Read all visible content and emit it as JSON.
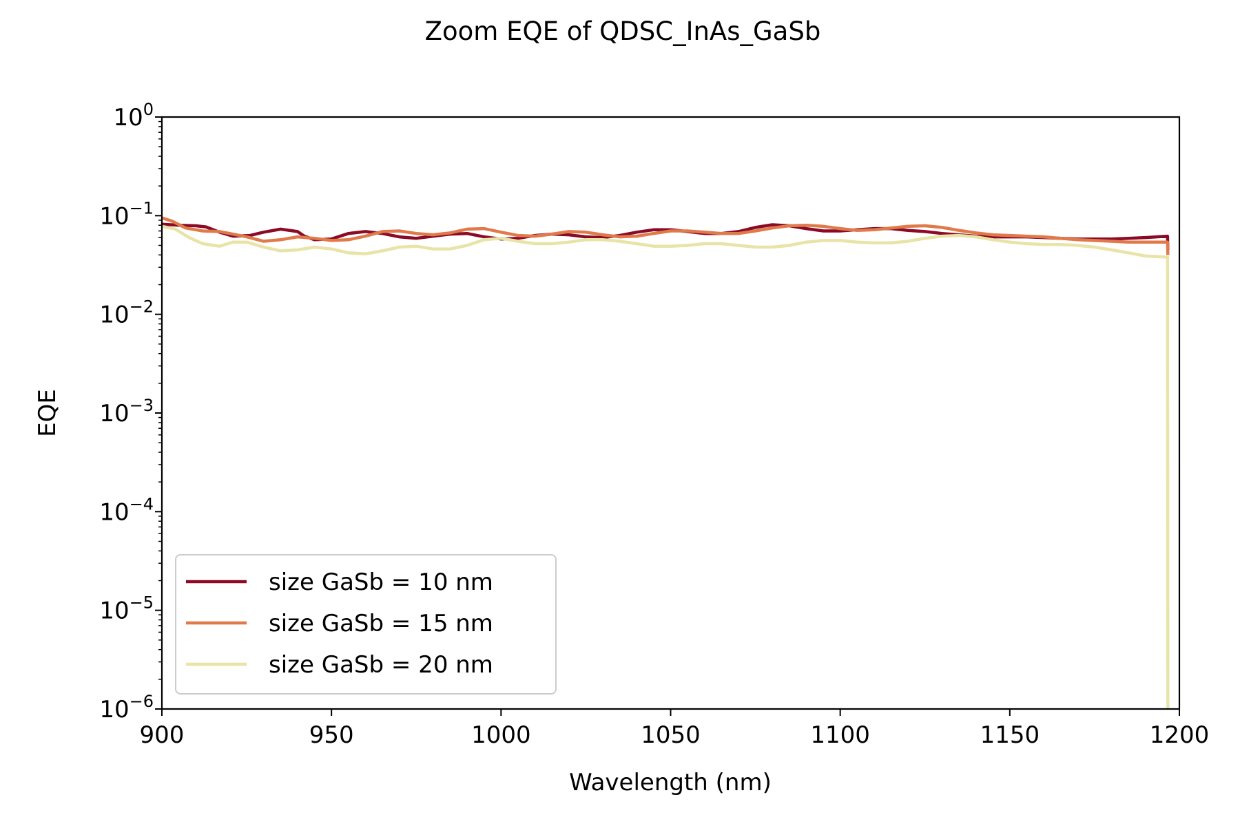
{
  "chart_data": {
    "type": "line",
    "title": "Zoom EQE of QDSC_InAs_GaSb",
    "xlabel": "Wavelength (nm)",
    "ylabel": "EQE",
    "xlim": [
      900,
      1200
    ],
    "ylim": [
      1e-06,
      1
    ],
    "yscale": "log",
    "grid": false,
    "legend_position": "lower-left",
    "xticks": [
      {
        "value": 900,
        "label": "900"
      },
      {
        "value": 950,
        "label": "950"
      },
      {
        "value": 1000,
        "label": "1000"
      },
      {
        "value": 1050,
        "label": "1050"
      },
      {
        "value": 1100,
        "label": "1100"
      },
      {
        "value": 1150,
        "label": "1150"
      },
      {
        "value": 1200,
        "label": "1200"
      }
    ],
    "yticks": [
      {
        "value": 1,
        "base": "10",
        "exp": "0"
      },
      {
        "value": 0.1,
        "base": "10",
        "exp": "−1"
      },
      {
        "value": 0.01,
        "base": "10",
        "exp": "−2"
      },
      {
        "value": 0.001,
        "base": "10",
        "exp": "−3"
      },
      {
        "value": 0.0001,
        "base": "10",
        "exp": "−4"
      },
      {
        "value": 1e-05,
        "base": "10",
        "exp": "−5"
      },
      {
        "value": 1e-06,
        "base": "10",
        "exp": "−6"
      }
    ],
    "series": [
      {
        "name": "size GaSb = 10 nm",
        "color": "#8b0a26",
        "points": [
          [
            900,
            0.082
          ],
          [
            905,
            0.08
          ],
          [
            910,
            0.079
          ],
          [
            913,
            0.077
          ],
          [
            917,
            0.068
          ],
          [
            921,
            0.062
          ],
          [
            926,
            0.063
          ],
          [
            930,
            0.068
          ],
          [
            935,
            0.073
          ],
          [
            940,
            0.069
          ],
          [
            942,
            0.062
          ],
          [
            945,
            0.057
          ],
          [
            950,
            0.058
          ],
          [
            955,
            0.066
          ],
          [
            960,
            0.069
          ],
          [
            965,
            0.066
          ],
          [
            970,
            0.061
          ],
          [
            975,
            0.059
          ],
          [
            980,
            0.062
          ],
          [
            985,
            0.065
          ],
          [
            990,
            0.066
          ],
          [
            995,
            0.061
          ],
          [
            1000,
            0.058
          ],
          [
            1005,
            0.059
          ],
          [
            1010,
            0.063
          ],
          [
            1015,
            0.065
          ],
          [
            1020,
            0.064
          ],
          [
            1025,
            0.061
          ],
          [
            1030,
            0.06
          ],
          [
            1035,
            0.063
          ],
          [
            1040,
            0.068
          ],
          [
            1045,
            0.072
          ],
          [
            1050,
            0.072
          ],
          [
            1055,
            0.069
          ],
          [
            1060,
            0.066
          ],
          [
            1065,
            0.066
          ],
          [
            1070,
            0.069
          ],
          [
            1075,
            0.076
          ],
          [
            1080,
            0.081
          ],
          [
            1085,
            0.079
          ],
          [
            1090,
            0.074
          ],
          [
            1095,
            0.07
          ],
          [
            1100,
            0.07
          ],
          [
            1105,
            0.072
          ],
          [
            1110,
            0.074
          ],
          [
            1115,
            0.074
          ],
          [
            1120,
            0.071
          ],
          [
            1125,
            0.069
          ],
          [
            1130,
            0.066
          ],
          [
            1135,
            0.064
          ],
          [
            1140,
            0.062
          ],
          [
            1145,
            0.061
          ],
          [
            1150,
            0.061
          ],
          [
            1155,
            0.061
          ],
          [
            1160,
            0.06
          ],
          [
            1165,
            0.059
          ],
          [
            1170,
            0.058
          ],
          [
            1175,
            0.058
          ],
          [
            1180,
            0.058
          ],
          [
            1185,
            0.059
          ],
          [
            1190,
            0.06
          ],
          [
            1196.5,
            0.062
          ],
          [
            1196.6,
            0.045
          ]
        ]
      },
      {
        "name": "size GaSb = 15 nm",
        "color": "#e07a4a",
        "points": [
          [
            900,
            0.095
          ],
          [
            903,
            0.088
          ],
          [
            907,
            0.075
          ],
          [
            912,
            0.07
          ],
          [
            917,
            0.069
          ],
          [
            920,
            0.066
          ],
          [
            925,
            0.061
          ],
          [
            930,
            0.055
          ],
          [
            935,
            0.057
          ],
          [
            940,
            0.061
          ],
          [
            945,
            0.059
          ],
          [
            950,
            0.056
          ],
          [
            955,
            0.057
          ],
          [
            960,
            0.062
          ],
          [
            965,
            0.069
          ],
          [
            970,
            0.07
          ],
          [
            975,
            0.066
          ],
          [
            980,
            0.064
          ],
          [
            985,
            0.067
          ],
          [
            990,
            0.073
          ],
          [
            995,
            0.074
          ],
          [
            1000,
            0.068
          ],
          [
            1005,
            0.063
          ],
          [
            1010,
            0.062
          ],
          [
            1015,
            0.065
          ],
          [
            1020,
            0.069
          ],
          [
            1025,
            0.068
          ],
          [
            1030,
            0.064
          ],
          [
            1035,
            0.061
          ],
          [
            1040,
            0.062
          ],
          [
            1045,
            0.066
          ],
          [
            1050,
            0.07
          ],
          [
            1055,
            0.07
          ],
          [
            1060,
            0.068
          ],
          [
            1065,
            0.066
          ],
          [
            1070,
            0.066
          ],
          [
            1075,
            0.07
          ],
          [
            1080,
            0.075
          ],
          [
            1085,
            0.079
          ],
          [
            1090,
            0.08
          ],
          [
            1095,
            0.078
          ],
          [
            1100,
            0.074
          ],
          [
            1105,
            0.071
          ],
          [
            1110,
            0.072
          ],
          [
            1115,
            0.075
          ],
          [
            1120,
            0.078
          ],
          [
            1125,
            0.079
          ],
          [
            1130,
            0.076
          ],
          [
            1135,
            0.071
          ],
          [
            1140,
            0.067
          ],
          [
            1145,
            0.064
          ],
          [
            1150,
            0.063
          ],
          [
            1155,
            0.062
          ],
          [
            1160,
            0.061
          ],
          [
            1165,
            0.059
          ],
          [
            1170,
            0.057
          ],
          [
            1175,
            0.056
          ],
          [
            1180,
            0.055
          ],
          [
            1185,
            0.054
          ],
          [
            1190,
            0.054
          ],
          [
            1196.5,
            0.054
          ],
          [
            1196.6,
            0.04
          ]
        ]
      },
      {
        "name": "size GaSb = 20 nm",
        "color": "#e8e4a8",
        "points": [
          [
            900,
            0.078
          ],
          [
            904,
            0.073
          ],
          [
            908,
            0.06
          ],
          [
            912,
            0.052
          ],
          [
            917,
            0.049
          ],
          [
            921,
            0.054
          ],
          [
            925,
            0.054
          ],
          [
            930,
            0.048
          ],
          [
            935,
            0.044
          ],
          [
            940,
            0.045
          ],
          [
            945,
            0.048
          ],
          [
            950,
            0.046
          ],
          [
            955,
            0.042
          ],
          [
            960,
            0.041
          ],
          [
            965,
            0.044
          ],
          [
            970,
            0.048
          ],
          [
            975,
            0.049
          ],
          [
            980,
            0.046
          ],
          [
            985,
            0.046
          ],
          [
            990,
            0.05
          ],
          [
            995,
            0.057
          ],
          [
            1000,
            0.059
          ],
          [
            1005,
            0.055
          ],
          [
            1010,
            0.052
          ],
          [
            1015,
            0.052
          ],
          [
            1020,
            0.054
          ],
          [
            1025,
            0.057
          ],
          [
            1030,
            0.057
          ],
          [
            1035,
            0.055
          ],
          [
            1040,
            0.052
          ],
          [
            1045,
            0.049
          ],
          [
            1050,
            0.049
          ],
          [
            1055,
            0.05
          ],
          [
            1060,
            0.052
          ],
          [
            1065,
            0.052
          ],
          [
            1070,
            0.05
          ],
          [
            1075,
            0.048
          ],
          [
            1080,
            0.048
          ],
          [
            1085,
            0.05
          ],
          [
            1090,
            0.054
          ],
          [
            1095,
            0.056
          ],
          [
            1100,
            0.056
          ],
          [
            1105,
            0.054
          ],
          [
            1110,
            0.053
          ],
          [
            1115,
            0.053
          ],
          [
            1120,
            0.055
          ],
          [
            1125,
            0.059
          ],
          [
            1130,
            0.062
          ],
          [
            1135,
            0.063
          ],
          [
            1140,
            0.061
          ],
          [
            1145,
            0.057
          ],
          [
            1150,
            0.054
          ],
          [
            1155,
            0.052
          ],
          [
            1160,
            0.051
          ],
          [
            1165,
            0.051
          ],
          [
            1170,
            0.05
          ],
          [
            1175,
            0.048
          ],
          [
            1180,
            0.045
          ],
          [
            1185,
            0.042
          ],
          [
            1190,
            0.039
          ],
          [
            1196.5,
            0.038
          ],
          [
            1196.6,
            1e-06
          ]
        ]
      }
    ]
  }
}
